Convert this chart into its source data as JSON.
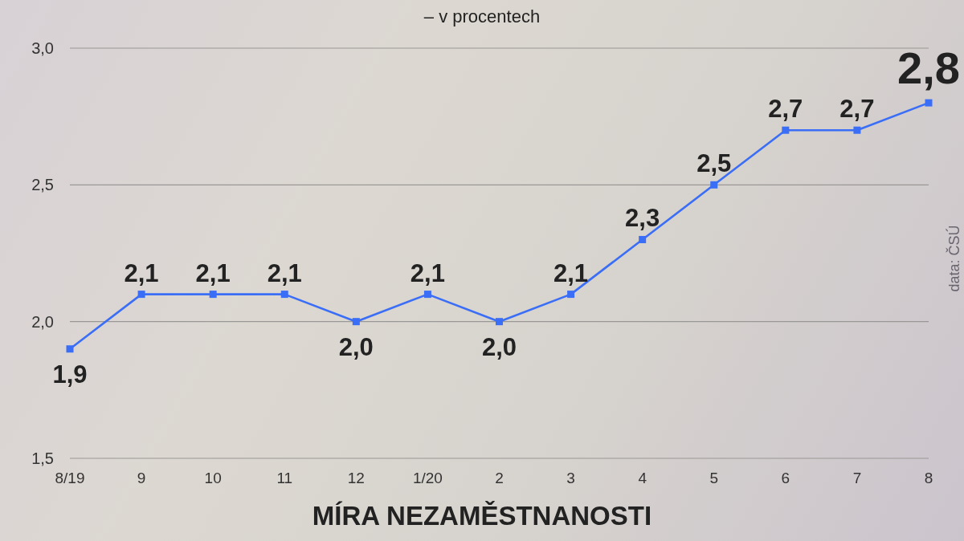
{
  "chart_data": {
    "type": "line",
    "title": "MÍRA NEZAMĚSTNANOSTI",
    "subtitle": "– v procentech",
    "annotations": [
      "data: ČSÚ"
    ],
    "categories": [
      "8/19",
      "9",
      "10",
      "11",
      "12",
      "1/20",
      "2",
      "3",
      "4",
      "5",
      "6",
      "7",
      "8"
    ],
    "values": [
      1.9,
      2.1,
      2.1,
      2.1,
      2.0,
      2.1,
      2.0,
      2.1,
      2.3,
      2.5,
      2.7,
      2.7,
      2.8
    ],
    "value_labels": [
      "1,9",
      "2,1",
      "2,1",
      "2,1",
      "2,0",
      "2,1",
      "2,0",
      "2,1",
      "2,3",
      "2,5",
      "2,7",
      "2,7",
      "2,8"
    ],
    "color": "#3b6ef6",
    "ylim": [
      1.5,
      3.0
    ],
    "yticks": [
      {
        "value": 1.5,
        "label": "1,5"
      },
      {
        "value": 2.0,
        "label": "2,0"
      },
      {
        "value": 2.5,
        "label": "2,5"
      },
      {
        "value": 3.0,
        "label": "3,0"
      }
    ],
    "grid": "y",
    "marker": "square",
    "line_style": "solid"
  }
}
